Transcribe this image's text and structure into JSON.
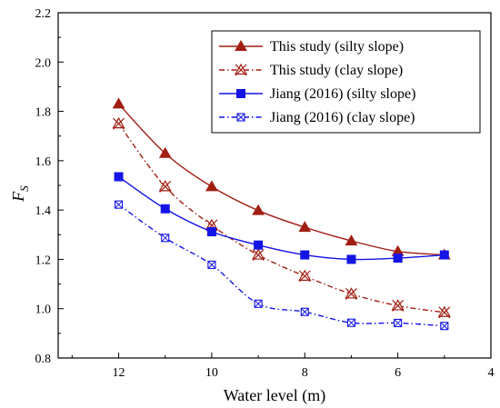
{
  "chart_data": {
    "type": "line",
    "xlabel": "Water level (m)",
    "ylabel": "F",
    "ylabel_sub": "S",
    "xlim": [
      13.3,
      4
    ],
    "ylim": [
      0.8,
      2.2
    ],
    "x_ticks": [
      "12",
      "10",
      "8",
      "6",
      "4"
    ],
    "y_ticks": [
      "0.8",
      "1.0",
      "1.2",
      "1.4",
      "1.6",
      "1.8",
      "2.0",
      "2.2"
    ],
    "legend_position": "top-right",
    "grid": false,
    "x": [
      12,
      11,
      10,
      9,
      8,
      7,
      6,
      5
    ],
    "series": [
      {
        "name": "This study (silty slope)",
        "color": "#a01e12",
        "marker": "triangle",
        "dash": "solid",
        "values": [
          1.83,
          1.63,
          1.495,
          1.398,
          1.33,
          1.275,
          1.232,
          1.218
        ]
      },
      {
        "name": "This study (clay slope)",
        "color": "#a01e12",
        "marker": "x-triangle",
        "dash": "dashdot",
        "values": [
          1.75,
          1.495,
          1.338,
          1.218,
          1.132,
          1.06,
          1.012,
          0.985
        ]
      },
      {
        "name": "Jiang (2016) (silty slope)",
        "color": "#1414e6",
        "marker": "square",
        "dash": "solid",
        "values": [
          1.535,
          1.405,
          1.312,
          1.258,
          1.218,
          1.2,
          1.205,
          1.218
        ]
      },
      {
        "name": "Jiang (2016) (clay slope)",
        "color": "#1414e6",
        "marker": "x-square",
        "dash": "dashdot",
        "values": [
          1.422,
          1.287,
          1.178,
          1.02,
          0.987,
          0.943,
          0.942,
          0.93
        ]
      }
    ]
  }
}
